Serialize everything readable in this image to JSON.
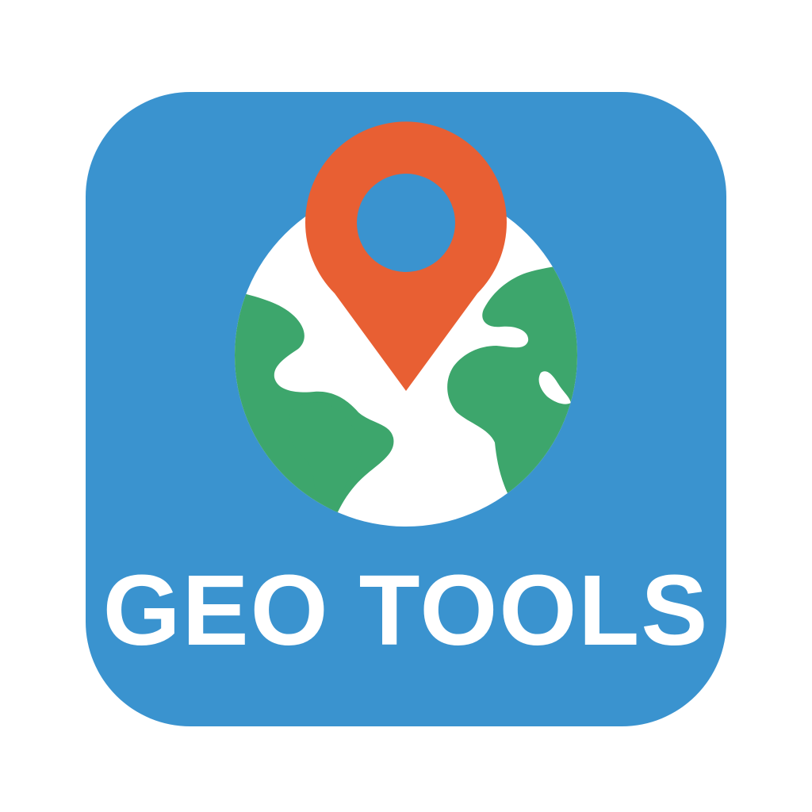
{
  "app_icon": {
    "title": "GEO TOOLS",
    "icons": {
      "globe": "globe-icon",
      "pin": "map-pin-icon"
    },
    "colors": {
      "background": "#3a93cf",
      "ocean": "#ffffff",
      "land": "#3da66c",
      "pin": "#e85f33",
      "pin_hole": "#3a93cf",
      "text": "#ffffff"
    }
  }
}
